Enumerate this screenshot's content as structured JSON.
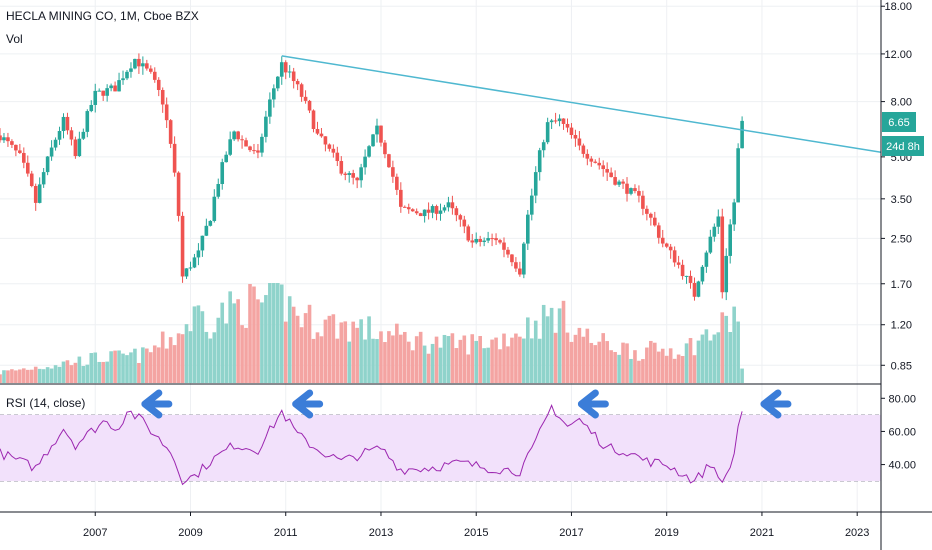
{
  "header": {
    "title": "HECLA MINING CO, 1M, Cboe BZX",
    "vol_label": "Vol"
  },
  "rsi_panel": {
    "label": "RSI (14, close)"
  },
  "price_tag": {
    "value": "6.65",
    "countdown": "24d 8h"
  },
  "colors": {
    "up": "#26a69a",
    "down": "#ef5350",
    "up_vol": "#8fd3cb",
    "down_vol": "#f4a4a2",
    "trendline": "#4fb8d0",
    "rsi": "#9c27b0",
    "rsi_band": "#f2e1fb",
    "arrow": "#3b7dd8"
  },
  "chart_data": [
    {
      "type": "candlestick",
      "title": "HECLA MINING CO, 1M, Cboe BZX",
      "y_scale": "log",
      "y_ticks": [
        "18.00",
        "12.00",
        "8.00",
        "5.00",
        "3.50",
        "2.50",
        "1.70",
        "1.20",
        "0.85"
      ],
      "x_ticks": [
        "2007",
        "2009",
        "2011",
        "2013",
        "2015",
        "2017",
        "2019",
        "2021",
        "2023"
      ],
      "x_range": [
        "2005-01",
        "2023-07"
      ],
      "last_close": 6.65,
      "trendline": {
        "from": [
          "2010-12",
          11.8
        ],
        "to": [
          "2023-07",
          5.2
        ]
      },
      "series_close_knots": [
        [
          "2005-01",
          6.0
        ],
        [
          "2005-06",
          5.0
        ],
        [
          "2005-10",
          3.4
        ],
        [
          "2006-05",
          6.8
        ],
        [
          "2006-08",
          5.0
        ],
        [
          "2007-01",
          8.5
        ],
        [
          "2007-06",
          9.0
        ],
        [
          "2007-11",
          11.5
        ],
        [
          "2008-03",
          10.0
        ],
        [
          "2008-06",
          8.0
        ],
        [
          "2008-11",
          1.8
        ],
        [
          "2009-03",
          2.2
        ],
        [
          "2009-06",
          3.0
        ],
        [
          "2009-12",
          6.2
        ],
        [
          "2010-03",
          5.5
        ],
        [
          "2010-06",
          5.0
        ],
        [
          "2010-12",
          11.0
        ],
        [
          "2011-04",
          9.0
        ],
        [
          "2011-09",
          6.0
        ],
        [
          "2012-03",
          4.5
        ],
        [
          "2012-07",
          4.0
        ],
        [
          "2012-12",
          6.3
        ],
        [
          "2013-06",
          3.2
        ],
        [
          "2013-12",
          3.1
        ],
        [
          "2014-06",
          3.3
        ],
        [
          "2014-12",
          2.4
        ],
        [
          "2015-06",
          2.5
        ],
        [
          "2015-12",
          1.9
        ],
        [
          "2016-03",
          3.6
        ],
        [
          "2016-07",
          6.6
        ],
        [
          "2016-10",
          6.8
        ],
        [
          "2017-03",
          5.4
        ],
        [
          "2017-12",
          4.1
        ],
        [
          "2018-06",
          3.5
        ],
        [
          "2018-12",
          2.4
        ],
        [
          "2019-03",
          2.1
        ],
        [
          "2019-08",
          1.55
        ],
        [
          "2019-12",
          2.5
        ],
        [
          "2020-02",
          3.0
        ],
        [
          "2020-03",
          1.6
        ],
        [
          "2020-06",
          3.4
        ],
        [
          "2020-07",
          5.3
        ],
        [
          "2020-08",
          6.65
        ]
      ]
    },
    {
      "type": "bar",
      "title": "Vol",
      "series_knots": [
        [
          "2005-01",
          0.15
        ],
        [
          "2006-01",
          0.25
        ],
        [
          "2007-01",
          0.35
        ],
        [
          "2008-01",
          0.4
        ],
        [
          "2008-10",
          0.7
        ],
        [
          "2009-03",
          1.0
        ],
        [
          "2009-06",
          0.9
        ],
        [
          "2010-01",
          1.1
        ],
        [
          "2010-12",
          1.2
        ],
        [
          "2011-06",
          0.9
        ],
        [
          "2012-06",
          0.8
        ],
        [
          "2013-06",
          0.65
        ],
        [
          "2014-06",
          0.55
        ],
        [
          "2015-06",
          0.6
        ],
        [
          "2016-06",
          0.9
        ],
        [
          "2016-09",
          1.0
        ],
        [
          "2017-06",
          0.6
        ],
        [
          "2018-06",
          0.45
        ],
        [
          "2019-06",
          0.5
        ],
        [
          "2020-03",
          0.8
        ],
        [
          "2020-07",
          1.0
        ],
        [
          "2020-08",
          0.2
        ]
      ]
    },
    {
      "type": "line",
      "title": "RSI (14, close)",
      "y_ticks": [
        "80.00",
        "60.00",
        "40.00"
      ],
      "band": [
        30,
        70
      ],
      "series_knots": [
        [
          "2005-01",
          47
        ],
        [
          "2005-06",
          42
        ],
        [
          "2005-10",
          38
        ],
        [
          "2006-05",
          62
        ],
        [
          "2006-08",
          52
        ],
        [
          "2007-03",
          66
        ],
        [
          "2007-07",
          62
        ],
        [
          "2007-09",
          73
        ],
        [
          "2008-01",
          66
        ],
        [
          "2008-04",
          58
        ],
        [
          "2008-08",
          48
        ],
        [
          "2008-11",
          31
        ],
        [
          "2009-02",
          33
        ],
        [
          "2009-06",
          42
        ],
        [
          "2009-12",
          52
        ],
        [
          "2010-06",
          49
        ],
        [
          "2010-12",
          72
        ],
        [
          "2011-04",
          58
        ],
        [
          "2011-09",
          49
        ],
        [
          "2012-03",
          42
        ],
        [
          "2012-09",
          47
        ],
        [
          "2013-01",
          50
        ],
        [
          "2013-06",
          37
        ],
        [
          "2014-01",
          38
        ],
        [
          "2014-09",
          41
        ],
        [
          "2015-04",
          38
        ],
        [
          "2015-12",
          36
        ],
        [
          "2016-03",
          48
        ],
        [
          "2016-08",
          75
        ],
        [
          "2016-12",
          63
        ],
        [
          "2017-03",
          67
        ],
        [
          "2017-10",
          50
        ],
        [
          "2018-03",
          48
        ],
        [
          "2018-08",
          42
        ],
        [
          "2019-01",
          40
        ],
        [
          "2019-08",
          30
        ],
        [
          "2019-12",
          40
        ],
        [
          "2020-02",
          35
        ],
        [
          "2020-03",
          27
        ],
        [
          "2020-06",
          46
        ],
        [
          "2020-07",
          64
        ],
        [
          "2020-08",
          72
        ]
      ]
    }
  ]
}
